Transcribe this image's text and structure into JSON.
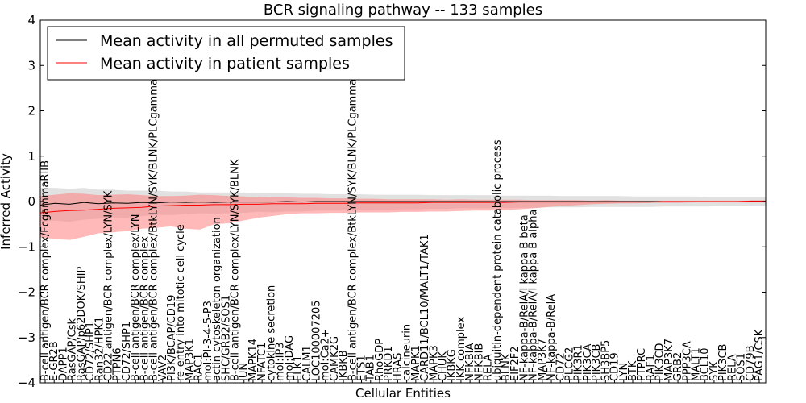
{
  "chart_data": {
    "type": "line",
    "title": "BCR signaling pathway -- 133 samples",
    "xlabel": "Cellular Entities",
    "ylabel": "Inferred Activity",
    "ylim": [
      -4,
      4
    ],
    "yticks": [
      -4,
      -3,
      -2,
      -1,
      0,
      1,
      2,
      3,
      4
    ],
    "xlim": [
      0,
      100
    ],
    "grid": false,
    "legend_position": "upper-left",
    "categories": [
      "B-cell antigen/BCR complex/FcgammaRIIB",
      "E-GR2B",
      "DAPP1",
      "RasGAP/Csk",
      "RasGAP/p62DOK/SHIP",
      "CD72/SHP1",
      "Ran32/HPK1",
      "CD22 antigen/BCR complex/LYN/SYK",
      "PTPN6",
      "CD72/SHP1",
      "B-cell antigen/BCR complex/LYN",
      "B-cell antigen/BCR complex",
      "B-cell antigen/BCR complex/BtkLYN/SYK/BLNK/PLCgamma2",
      "VAV2",
      "PI3K/BCAP/CD19",
      "re-entry into mitotic cell cycle",
      "MAP3K1",
      "RAC1",
      "mol:PI-3-4-5-P3",
      "actin cytoskeleton organization",
      "SHC/GRB2/SOS1",
      "B-cell antigen/BCR complex/LYN/SYK/BLNK",
      "JUN",
      "MAPK14",
      "NFATC1",
      "cytokine secretion",
      "mol:IP3",
      "mol:DAG",
      "ELK1",
      "CALM1",
      "LOC100007205",
      "mol:Ca2+",
      "CAMK2G",
      "IKBKB",
      "B-cell antigen/BCR complex/BtkLYN/SYK/BLNK/PLCgamma2",
      "ETS1",
      "TAB1",
      "RhoGDP",
      "PRKD1",
      "HRAS",
      "calcineurin",
      "MAPK1",
      "CARD11/BCL10/MALT1/TAK1",
      "MAPK3",
      "CHUK",
      "IKBKG",
      "IKK complex",
      "NFKBIA",
      "NFKBIB",
      "RELA",
      "ubiquitin-dependent protein catabolic process",
      "BLNK",
      "EIF2F2",
      "NF-kappa-B/RelA/I kappa B beta",
      "NF-kappa-B/RelA/I kappa B alpha",
      "MAP3K7",
      "NF-kappa-B/RelA",
      "CD72",
      "PLCG2",
      "PIK3R1",
      "PIK3CA",
      "PIK3CB",
      "SH3BP5",
      "CD19",
      "LYN",
      "BTK",
      "PTPRC",
      "RAF1",
      "PIK3CD",
      "MAP3K7",
      "GRB2",
      "PPP3CA",
      "MALT1",
      "BCL10",
      "SYK",
      "PIK3CB",
      "RELA",
      "SOS1",
      "CD79B",
      "PAG1/CSK"
    ],
    "x": [
      0,
      2,
      4,
      6,
      8,
      10,
      12,
      14,
      16,
      18,
      20,
      22,
      24,
      26,
      28,
      30,
      32,
      34,
      36,
      38,
      40,
      42,
      44,
      46,
      48,
      50,
      52,
      54,
      56,
      58,
      60,
      62,
      64,
      66,
      68,
      70,
      72,
      74,
      76,
      78,
      80,
      82,
      84,
      86,
      88,
      90,
      92,
      94,
      96,
      98,
      100
    ],
    "series": [
      {
        "name": "Mean activity in all permuted samples",
        "color": "#000000",
        "values": [
          -0.08,
          -0.04,
          -0.06,
          -0.02,
          -0.05,
          -0.03,
          -0.04,
          -0.02,
          -0.03,
          -0.01,
          -0.02,
          -0.01,
          -0.02,
          -0.01,
          -0.01,
          -0.01,
          -0.01,
          0.0,
          -0.01,
          0.0,
          0.0,
          0.0,
          0.0,
          0.0,
          0.0,
          0.0,
          0.0,
          0.0,
          0.0,
          0.0,
          0.0,
          0.0,
          0.0,
          0.0,
          0.0,
          0.0,
          0.0,
          0.0,
          0.0,
          0.0,
          0.0,
          0.0,
          0.0,
          0.0,
          0.0,
          0.0,
          0.0,
          0.0,
          0.0,
          0.0,
          0.0
        ],
        "band_lower": [
          -0.45,
          -0.42,
          -0.45,
          -0.4,
          -0.38,
          -0.35,
          -0.36,
          -0.32,
          -0.3,
          -0.3,
          -0.28,
          -0.26,
          -0.27,
          -0.26,
          -0.25,
          -0.23,
          -0.24,
          -0.22,
          -0.22,
          -0.2,
          -0.2,
          -0.2,
          -0.19,
          -0.18,
          -0.18,
          -0.17,
          -0.17,
          -0.16,
          -0.16,
          -0.15,
          -0.15,
          -0.15,
          -0.14,
          -0.14,
          -0.14,
          -0.13,
          -0.13,
          -0.13,
          -0.12,
          -0.12,
          -0.12,
          -0.12,
          -0.12,
          -0.11,
          -0.11,
          -0.11,
          -0.11,
          -0.1,
          -0.1,
          -0.1,
          -0.1
        ],
        "band_upper": [
          0.3,
          0.3,
          0.28,
          0.3,
          0.26,
          0.26,
          0.24,
          0.24,
          0.24,
          0.22,
          0.22,
          0.2,
          0.2,
          0.2,
          0.2,
          0.18,
          0.18,
          0.18,
          0.17,
          0.17,
          0.16,
          0.16,
          0.16,
          0.15,
          0.15,
          0.15,
          0.15,
          0.14,
          0.14,
          0.14,
          0.14,
          0.14,
          0.13,
          0.13,
          0.13,
          0.13,
          0.12,
          0.12,
          0.12,
          0.12,
          0.12,
          0.11,
          0.11,
          0.11,
          0.11,
          0.11,
          0.1,
          0.1,
          0.1,
          0.1,
          0.1
        ],
        "band_color": "#c8c8c8"
      },
      {
        "name": "Mean activity in patient samples",
        "color": "#ff0000",
        "values": [
          -0.25,
          -0.22,
          -0.2,
          -0.19,
          -0.17,
          -0.15,
          -0.14,
          -0.13,
          -0.1,
          -0.09,
          -0.08,
          -0.08,
          -0.07,
          -0.07,
          -0.06,
          -0.06,
          -0.05,
          -0.05,
          -0.05,
          -0.04,
          -0.04,
          -0.04,
          -0.03,
          -0.03,
          -0.03,
          -0.03,
          -0.03,
          -0.02,
          -0.02,
          -0.02,
          -0.02,
          -0.02,
          -0.02,
          -0.01,
          -0.01,
          -0.01,
          -0.01,
          -0.01,
          -0.01,
          -0.01,
          -0.01,
          -0.01,
          -0.01,
          0.0,
          0.0,
          0.0,
          0.0,
          0.0,
          0.0,
          0.01,
          0.01
        ],
        "band_lower": [
          -0.8,
          -0.82,
          -0.85,
          -0.78,
          -0.7,
          -0.68,
          -0.65,
          -0.6,
          -0.58,
          -0.55,
          -0.6,
          -0.62,
          -0.5,
          -0.48,
          -0.42,
          -0.36,
          -0.32,
          -0.28,
          -0.26,
          -0.26,
          -0.25,
          -0.25,
          -0.24,
          -0.24,
          -0.24,
          -0.23,
          -0.23,
          -0.22,
          -0.22,
          -0.21,
          -0.2,
          -0.2,
          -0.19,
          -0.17,
          -0.15,
          -0.12,
          -0.1,
          -0.08,
          -0.06,
          -0.05,
          -0.04,
          -0.04,
          -0.03,
          -0.03,
          -0.03,
          -0.02,
          -0.02,
          -0.02,
          -0.02,
          -0.02,
          -0.02
        ],
        "band_upper": [
          0.12,
          0.15,
          0.18,
          0.17,
          0.14,
          0.15,
          0.16,
          0.14,
          0.12,
          0.12,
          0.13,
          0.15,
          0.14,
          0.12,
          0.11,
          0.1,
          0.09,
          0.09,
          0.08,
          0.08,
          0.07,
          0.07,
          0.06,
          0.06,
          0.05,
          0.05,
          0.05,
          0.05,
          0.04,
          0.05,
          0.04,
          0.04,
          0.04,
          0.04,
          0.03,
          0.03,
          0.03,
          0.03,
          0.02,
          0.03,
          0.02,
          0.02,
          0.02,
          0.02,
          0.02,
          0.02,
          0.02,
          0.02,
          0.02,
          0.02,
          0.02
        ],
        "band_color": "#ff8080"
      }
    ]
  }
}
